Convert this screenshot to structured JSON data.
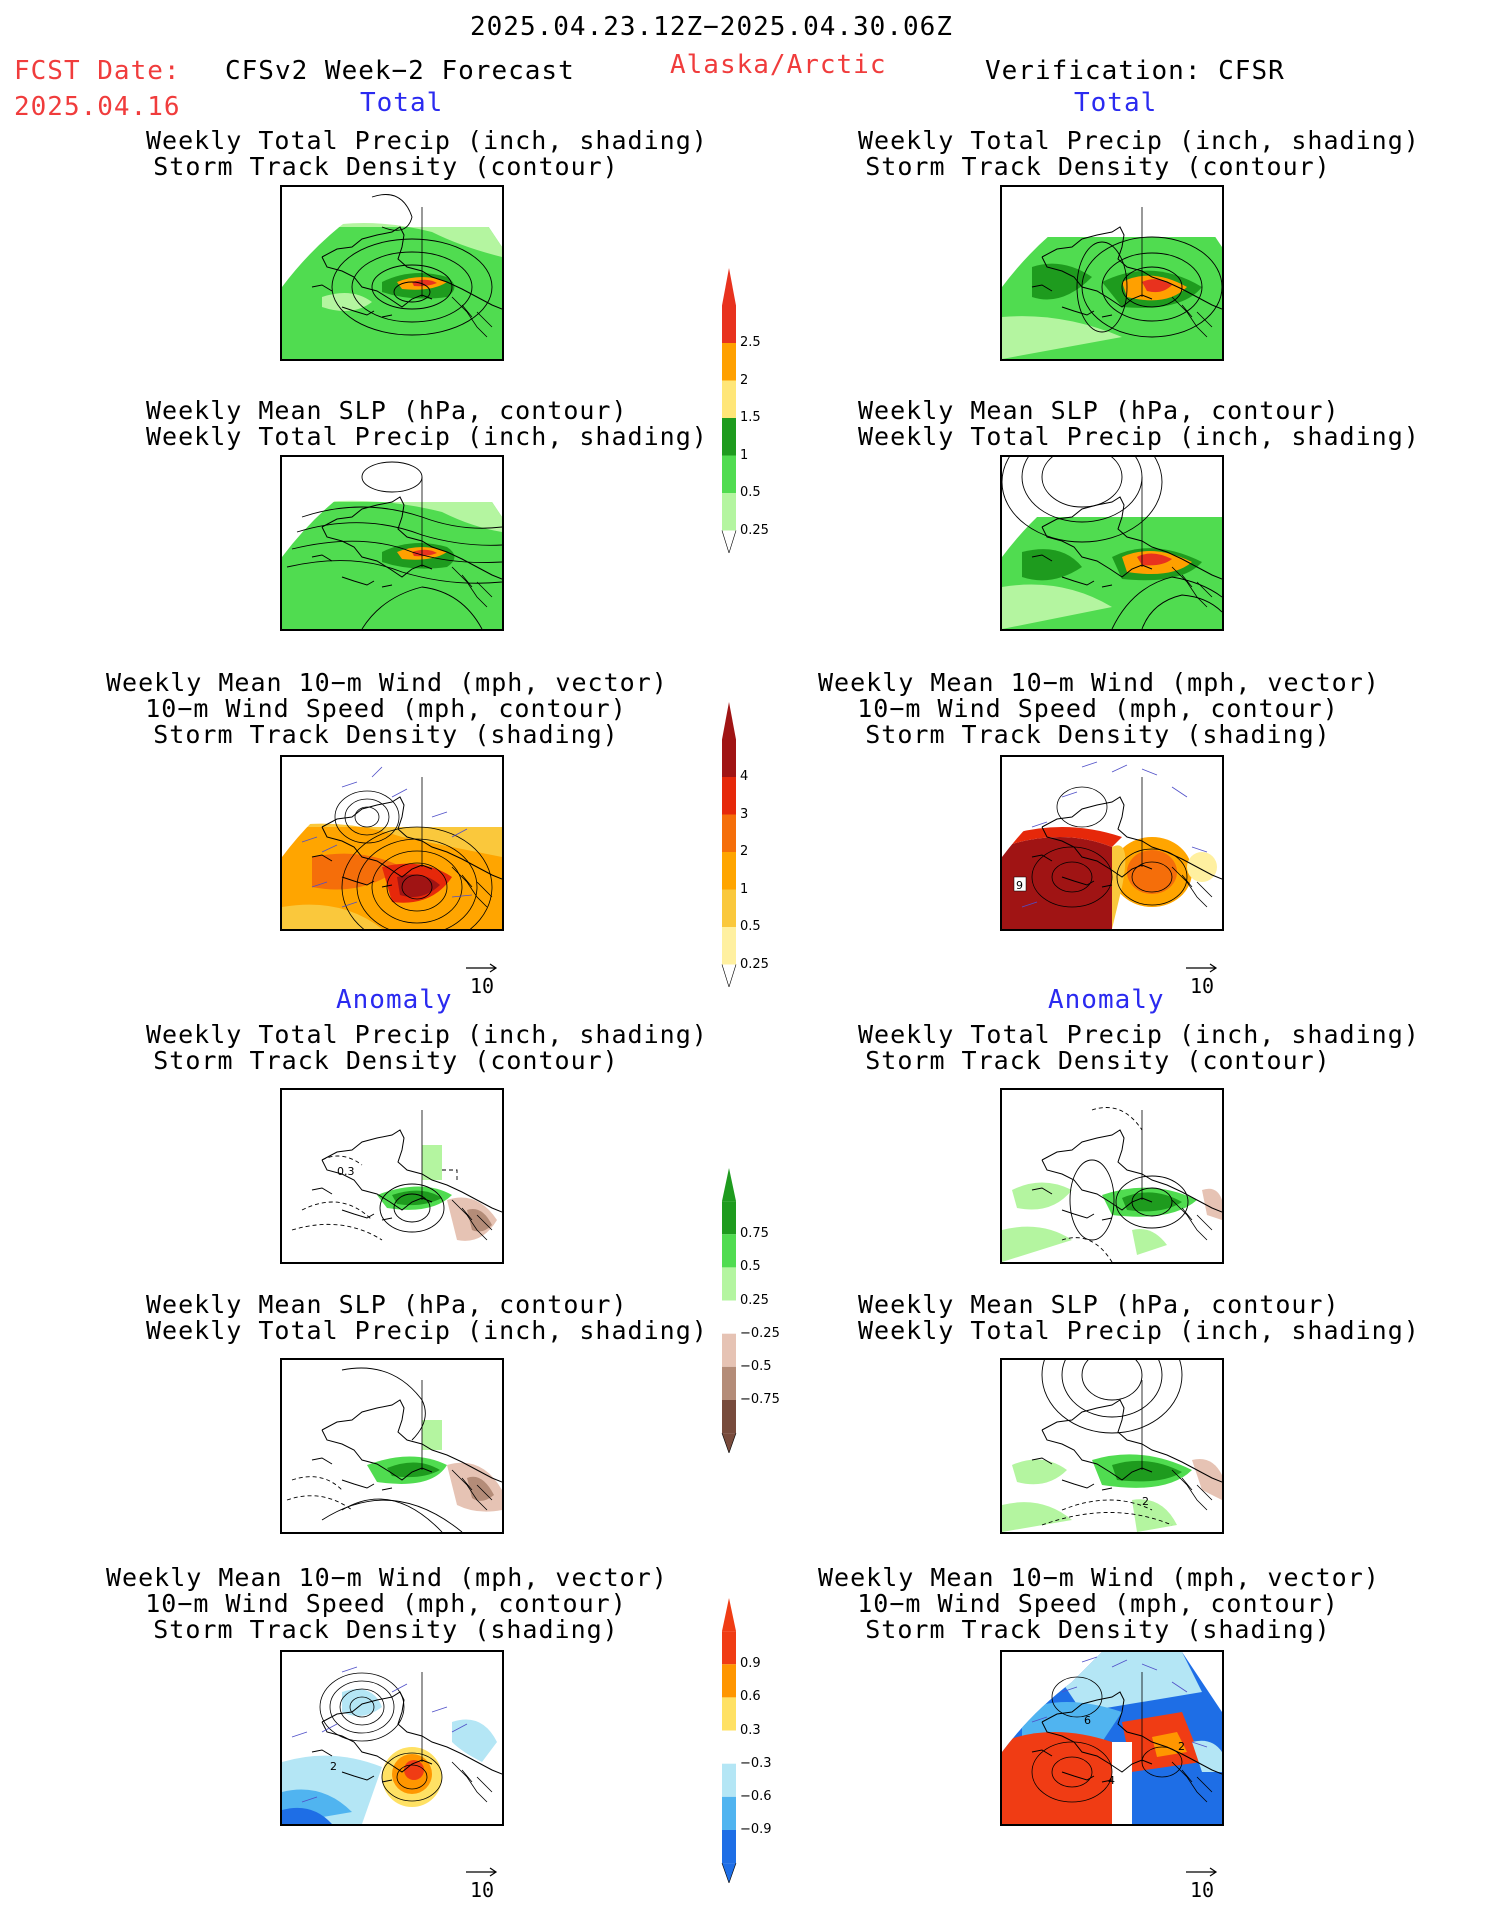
{
  "header": {
    "period": "2025.04.23.12Z−2025.04.30.06Z",
    "fcst_label": "FCST Date:",
    "fcst_date": "2025.04.16",
    "forecast_title": "CFSv2 Week−2 Forecast",
    "region": "Alaska/Arctic",
    "verification": "Verification: CFSR"
  },
  "sections": {
    "total": "Total",
    "anomaly": "Anomaly"
  },
  "titles": {
    "precip_storm": [
      "Weekly Total Precip (inch, shading)",
      "Storm Track Density (contour)"
    ],
    "slp_precip": [
      "Weekly Mean SLP (hPa, contour)",
      "Weekly Total Precip (inch, shading)"
    ],
    "wind_storm": [
      "Weekly Mean 10−m Wind (mph, vector)",
      "10−m Wind Speed (mph, contour)",
      "Storm Track Density (shading)"
    ]
  },
  "vector_ref": "10",
  "contour_labels": {
    "total_obs_wind": "9",
    "anom_obs_wind_a": "6",
    "anom_obs_wind_b": "4",
    "anom_obs_wind_c": "2",
    "anom_fcst_wind": "2",
    "anom_obs_slp": "2",
    "anom_fcst_precip": "0.3"
  },
  "colorbars": [
    {
      "name": "precip-total",
      "labels": [
        "2.5",
        "2",
        "1.5",
        "1",
        "0.5",
        "0.25"
      ],
      "colors": [
        "#e8321e",
        "#ffa000",
        "#ffe678",
        "#1e9b1e",
        "#50dc50",
        "#b4f5a0"
      ]
    },
    {
      "name": "storm-total",
      "labels": [
        "4",
        "3",
        "2",
        "1",
        "0.5",
        "0.25"
      ],
      "colors": [
        "#a01414",
        "#e6280a",
        "#f56e0a",
        "#ffa500",
        "#fac83c",
        "#fff0a0"
      ]
    },
    {
      "name": "precip-anom",
      "labels": [
        "0.75",
        "0.5",
        "0.25",
        "−0.25",
        "−0.5",
        "−0.75"
      ],
      "colors": [
        "#1e9b1e",
        "#50dc50",
        "#b4f5a0",
        "#ffffff",
        "#e6c3b4",
        "#b48c78",
        "#784b3c"
      ]
    },
    {
      "name": "storm-anom",
      "labels": [
        "0.9",
        "0.6",
        "0.3",
        "−0.3",
        "−0.6",
        "−0.9"
      ],
      "colors": [
        "#f03c14",
        "#ff9600",
        "#ffe164",
        "#ffffff",
        "#b4e6f5",
        "#50b4f0",
        "#1e6ee6"
      ]
    }
  ]
}
